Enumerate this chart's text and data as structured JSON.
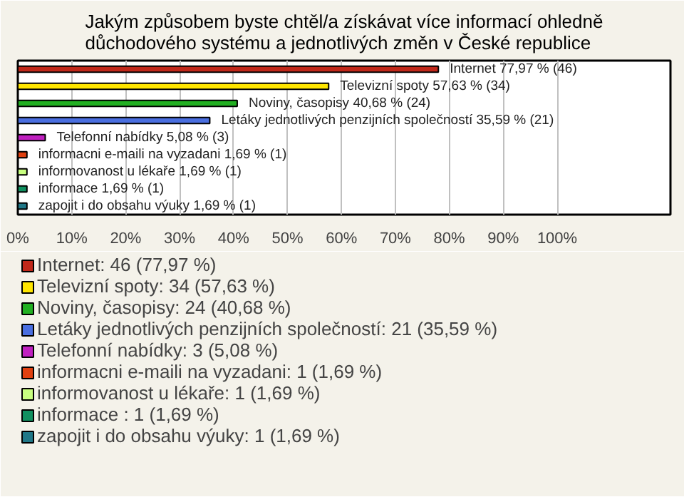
{
  "chart_data": {
    "type": "bar",
    "orientation": "horizontal",
    "title": "Jakým způsobem byste chtěl/a získávat více informací ohledně důchodového systému a jednotlivých změn v České republice",
    "categories": [
      null,
      null,
      null,
      null,
      null,
      null,
      null,
      null,
      null
    ],
    "series": [
      {
        "name": "Internet: 46 (77,97 %)",
        "color": "#c0281a",
        "values": [
          77.97,
          null,
          null,
          null,
          null,
          null,
          null,
          null,
          null
        ],
        "value_labels": [
          "Internet 77,97 % (46)",
          null,
          null,
          null,
          null,
          null,
          null,
          null,
          null
        ]
      },
      {
        "name": "Televizní spoty: 34 (57,63 %)",
        "color": "#ffe600",
        "values": [
          null,
          57.63,
          null,
          null,
          null,
          null,
          null,
          null,
          null
        ],
        "value_labels": [
          null,
          "Televizní spoty 57,63 % (34)",
          null,
          null,
          null,
          null,
          null,
          null,
          null
        ]
      },
      {
        "name": "Noviny, časopisy: 24 (40,68 %)",
        "color": "#22b022",
        "values": [
          null,
          null,
          40.68,
          null,
          null,
          null,
          null,
          null,
          null
        ],
        "value_labels": [
          null,
          null,
          "Noviny, časopisy 40,68 % (24)",
          null,
          null,
          null,
          null,
          null,
          null
        ]
      },
      {
        "name": "Letáky jednotlivých penzijních společností: 21 (35,59 %)",
        "color": "#4a6fe0",
        "values": [
          null,
          null,
          null,
          35.59,
          null,
          null,
          null,
          null,
          null
        ],
        "value_labels": [
          null,
          null,
          null,
          "Letáky jednotlivých penzijních společností 35,59 % (21)",
          null,
          null,
          null,
          null,
          null
        ]
      },
      {
        "name": "Telefonní nabídky: 3 (5,08 %)",
        "color": "#c020c0",
        "values": [
          null,
          null,
          null,
          null,
          5.08,
          null,
          null,
          null,
          null
        ],
        "value_labels": [
          null,
          null,
          null,
          null,
          "Telefonní nabídky 5,08 % (3)",
          null,
          null,
          null,
          null
        ]
      },
      {
        "name": "informacni e-maili na vyzadani: 1 (1,69 %)",
        "color": "#e04010",
        "values": [
          null,
          null,
          null,
          null,
          null,
          1.69,
          null,
          null,
          null
        ],
        "value_labels": [
          null,
          null,
          null,
          null,
          null,
          "informacni e-maili na vyzadani 1,69 % (1)",
          null,
          null,
          null
        ]
      },
      {
        "name": "informovanost u lékaře: 1 (1,69 %)",
        "color": "#c8ff80",
        "values": [
          null,
          null,
          null,
          null,
          null,
          null,
          1.69,
          null,
          null
        ],
        "value_labels": [
          null,
          null,
          null,
          null,
          null,
          null,
          "informovanost u lékaře 1,69 % (1)",
          null,
          null
        ]
      },
      {
        "name": "informace : 1 (1,69 %)",
        "color": "#109060",
        "values": [
          null,
          null,
          null,
          null,
          null,
          null,
          null,
          1.69,
          null
        ],
        "value_labels": [
          null,
          null,
          null,
          null,
          null,
          null,
          null,
          "informace  1,69 % (1)",
          null
        ]
      },
      {
        "name": "zapojit i do obsahu výuky: 1 (1,69 %)",
        "color": "#207888",
        "values": [
          null,
          null,
          null,
          null,
          null,
          null,
          null,
          null,
          1.69
        ],
        "value_labels": [
          null,
          null,
          null,
          null,
          null,
          null,
          null,
          null,
          "zapojit i do obsahu výuky 1,69 % (1)"
        ]
      }
    ],
    "xlim": [
      0,
      121
    ],
    "xticks": [
      {
        "value": 0,
        "label": "0%"
      },
      {
        "value": 10,
        "label": "10%"
      },
      {
        "value": 20,
        "label": "20%"
      },
      {
        "value": 30,
        "label": "30%"
      },
      {
        "value": 40,
        "label": "40%"
      },
      {
        "value": 50,
        "label": "50%"
      },
      {
        "value": 60,
        "label": "60%"
      },
      {
        "value": 70,
        "label": "70%"
      },
      {
        "value": 80,
        "label": "80%"
      },
      {
        "value": 90,
        "label": "90%"
      },
      {
        "value": 100,
        "label": "100%"
      }
    ],
    "grid": "x",
    "legend": "bottom"
  }
}
